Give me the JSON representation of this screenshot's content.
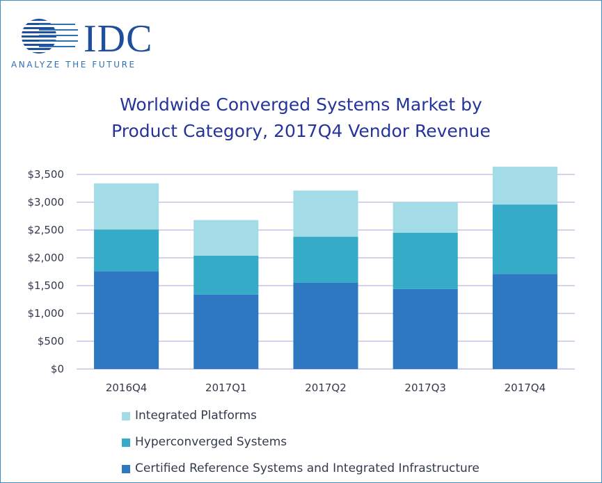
{
  "brand": {
    "name": "IDC",
    "tagline": "ANALYZE THE FUTURE"
  },
  "chart_data": {
    "type": "bar",
    "stacked": true,
    "title_lines": [
      "Worldwide Converged Systems Market by",
      "Product Category, 2017Q4 Vendor Revenue"
    ],
    "categories": [
      "2016Q4",
      "2017Q1",
      "2017Q2",
      "2017Q3",
      "2017Q4"
    ],
    "series": [
      {
        "name": "Certified Reference Systems and Integrated Infrastructure",
        "color": "#2e78c2",
        "values": [
          1760,
          1340,
          1550,
          1440,
          1710
        ]
      },
      {
        "name": "Hyperconverged Systems",
        "color": "#35abc8",
        "values": [
          750,
          700,
          830,
          1010,
          1250
        ]
      },
      {
        "name": "Integrated Platforms",
        "color": "#a3dbe6",
        "values": [
          830,
          640,
          830,
          550,
          680
        ]
      }
    ],
    "legend_order": [
      2,
      1,
      0
    ],
    "y_ticks": [
      "$0",
      "$500",
      "$1,000",
      "$1,500",
      "$2,000",
      "$2,500",
      "$3,000",
      "$3,500"
    ],
    "ylim": [
      0,
      3500
    ],
    "grid": true,
    "legend_position": "bottom",
    "gridline_color": "#c8c0e6"
  }
}
